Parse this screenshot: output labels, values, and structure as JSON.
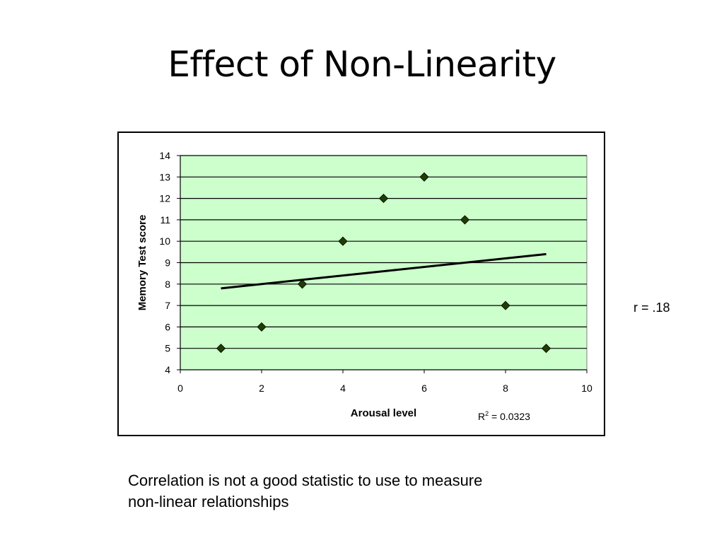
{
  "slide": {
    "title": "Effect of Non-Linearity",
    "r_label": "r = .18",
    "caption_lines": [
      "Correlation is not a good statistic to use to measure",
      "non-linear relationships"
    ]
  },
  "colors": {
    "plot_background": "#ccffcc",
    "marker": "#1f3d00",
    "trendline": "#000000",
    "gridline": "#000000"
  },
  "chart_data": {
    "type": "scatter",
    "xlabel": "Arousal level",
    "ylabel": "Memory Test score",
    "xlim": [
      0,
      10
    ],
    "ylim": [
      4,
      14
    ],
    "x_ticks": [
      0,
      2,
      4,
      6,
      8,
      10
    ],
    "y_ticks": [
      4,
      5,
      6,
      7,
      8,
      9,
      10,
      11,
      12,
      13,
      14
    ],
    "grid": "horizontal",
    "series": [
      {
        "x": [
          1,
          2,
          3,
          4,
          5,
          6,
          7,
          8,
          9
        ],
        "y": [
          5,
          6,
          8,
          10,
          12,
          13,
          11,
          7,
          5
        ],
        "marker": "diamond"
      }
    ],
    "trendline": {
      "type": "linear",
      "x": [
        1,
        9
      ],
      "y": [
        7.8,
        9.4
      ],
      "r_squared_label": {
        "prefix": "R",
        "superscript": "2",
        "text": " = 0.0323"
      }
    }
  }
}
